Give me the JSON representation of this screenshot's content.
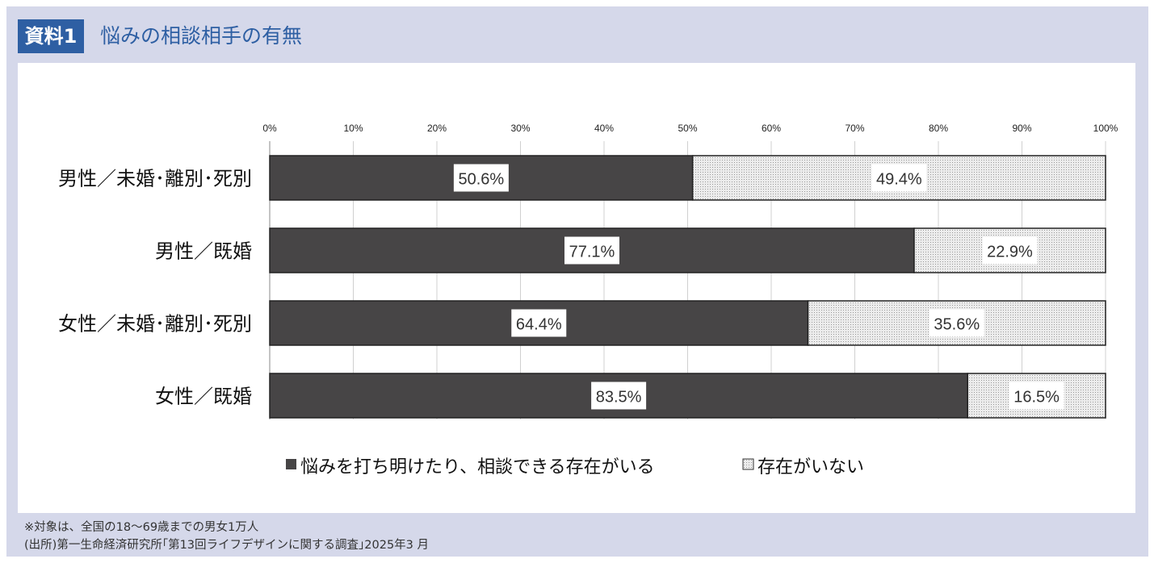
{
  "header": {
    "badge": "資料1",
    "title": "悩みの相談相手の有無"
  },
  "chart_data": {
    "type": "bar",
    "stacked": true,
    "orientation": "horizontal",
    "title": "悩みの相談相手の有無",
    "categories": [
      "男性／未婚･離別･死別",
      "男性／既婚",
      "女性／未婚･離別･死別",
      "女性／既婚"
    ],
    "series": [
      {
        "name": "悩みを打ち明けたり、相談できる存在がいる",
        "values": [
          50.6,
          77.1,
          64.4,
          83.5
        ],
        "labels": [
          "50.6%",
          "77.1%",
          "64.4%",
          "83.5%"
        ],
        "color": "#474546"
      },
      {
        "name": "存在がいない",
        "values": [
          49.4,
          22.9,
          35.6,
          16.5
        ],
        "labels": [
          "49.4%",
          "22.9%",
          "35.6%",
          "16.5%"
        ],
        "color": "#e6e6e6"
      }
    ],
    "xlim": [
      0,
      100
    ],
    "xticks": [
      "0%",
      "10%",
      "20%",
      "30%",
      "40%",
      "50%",
      "60%",
      "70%",
      "80%",
      "90%",
      "100%"
    ],
    "grid": true,
    "legend_position": "bottom"
  },
  "footer": {
    "note": "※対象は、全国の18～69歳までの男女1万人",
    "source": "(出所)第一生命経済研究所｢第13回ライフデザインに関する調査｣2025年3 月"
  }
}
